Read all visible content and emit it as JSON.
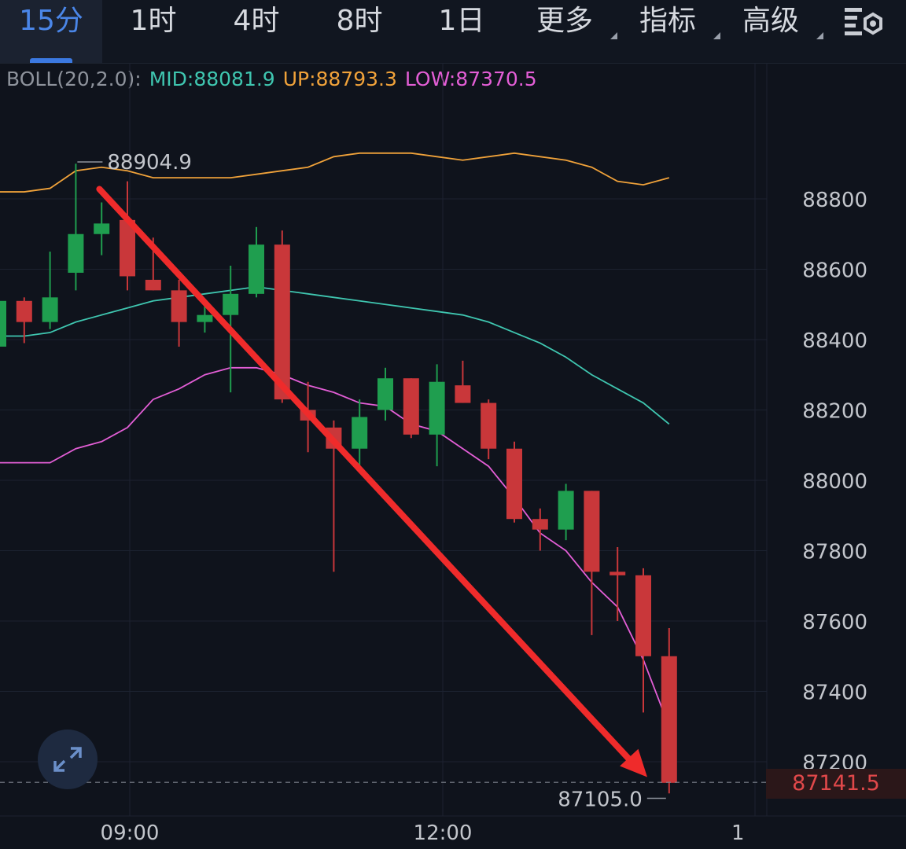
{
  "tabs": [
    {
      "label": "15分",
      "active": true,
      "dropdown": false
    },
    {
      "label": "1时",
      "active": false,
      "dropdown": false
    },
    {
      "label": "4时",
      "active": false,
      "dropdown": false
    },
    {
      "label": "8时",
      "active": false,
      "dropdown": false
    },
    {
      "label": "1日",
      "active": false,
      "dropdown": false
    },
    {
      "label": "更多",
      "active": false,
      "dropdown": true
    },
    {
      "label": "指标",
      "active": false,
      "dropdown": true
    },
    {
      "label": "高级",
      "active": false,
      "dropdown": true
    }
  ],
  "settings_icon": "chart-settings-gear-icon",
  "indicator": {
    "name": "BOLL(20,2.0):",
    "mid": "MID:88081.9",
    "up": "UP:88793.3",
    "low": "LOW:87370.5",
    "colors": {
      "name": "#8e939c",
      "mid": "#3fc6b0",
      "up": "#f0a23a",
      "low": "#e35ed6"
    }
  },
  "colors": {
    "up": "#1f9e4f",
    "down": "#c9373a",
    "grid": "#1c2230",
    "arrow": "#ef2b2b"
  },
  "chart_data": {
    "type": "candlestick",
    "y_ticks": [
      88800,
      88600,
      88400,
      88200,
      88000,
      87800,
      87600,
      87400,
      87200
    ],
    "x_ticks": [
      "09:00",
      "12:00",
      "1"
    ],
    "ylim": [
      87040,
      89180
    ],
    "candles": [
      {
        "o": 88380,
        "h": 88520,
        "l": 88370,
        "c": 88510
      },
      {
        "o": 88510,
        "h": 88520,
        "l": 88390,
        "c": 88450
      },
      {
        "o": 88450,
        "h": 88650,
        "l": 88430,
        "c": 88520
      },
      {
        "o": 88590,
        "h": 88900,
        "l": 88540,
        "c": 88700
      },
      {
        "o": 88700,
        "h": 88790,
        "l": 88640,
        "c": 88730
      },
      {
        "o": 88740,
        "h": 88850,
        "l": 88540,
        "c": 88580
      },
      {
        "o": 88570,
        "h": 88690,
        "l": 88540,
        "c": 88540
      },
      {
        "o": 88540,
        "h": 88570,
        "l": 88380,
        "c": 88450
      },
      {
        "o": 88450,
        "h": 88500,
        "l": 88420,
        "c": 88470
      },
      {
        "o": 88470,
        "h": 88610,
        "l": 88250,
        "c": 88530
      },
      {
        "o": 88530,
        "h": 88720,
        "l": 88520,
        "c": 88670
      },
      {
        "o": 88670,
        "h": 88710,
        "l": 88220,
        "c": 88230
      },
      {
        "o": 88200,
        "h": 88280,
        "l": 88080,
        "c": 88170
      },
      {
        "o": 88150,
        "h": 88170,
        "l": 87740,
        "c": 88090
      },
      {
        "o": 88090,
        "h": 88230,
        "l": 88040,
        "c": 88180
      },
      {
        "o": 88200,
        "h": 88320,
        "l": 88170,
        "c": 88290
      },
      {
        "o": 88290,
        "h": 88290,
        "l": 88120,
        "c": 88130
      },
      {
        "o": 88130,
        "h": 88330,
        "l": 88040,
        "c": 88280
      },
      {
        "o": 88270,
        "h": 88340,
        "l": 88220,
        "c": 88220
      },
      {
        "o": 88220,
        "h": 88230,
        "l": 88060,
        "c": 88090
      },
      {
        "o": 88090,
        "h": 88110,
        "l": 87880,
        "c": 87890
      },
      {
        "o": 87890,
        "h": 87920,
        "l": 87800,
        "c": 87860
      },
      {
        "o": 87860,
        "h": 87990,
        "l": 87830,
        "c": 87970
      },
      {
        "o": 87970,
        "h": 87970,
        "l": 87560,
        "c": 87740
      },
      {
        "o": 87740,
        "h": 87810,
        "l": 87600,
        "c": 87730
      },
      {
        "o": 87730,
        "h": 87750,
        "l": 87340,
        "c": 87500
      },
      {
        "o": 87500,
        "h": 87580,
        "l": 87110,
        "c": 87140
      }
    ],
    "boll": {
      "up": [
        88820,
        88820,
        88830,
        88880,
        88890,
        88880,
        88860,
        88860,
        88860,
        88860,
        88870,
        88880,
        88890,
        88920,
        88930,
        88930,
        88930,
        88920,
        88910,
        88920,
        88930,
        88920,
        88910,
        88890,
        88850,
        88840,
        88860
      ],
      "mid": [
        88410,
        88410,
        88420,
        88450,
        88470,
        88490,
        88510,
        88520,
        88530,
        88540,
        88550,
        88540,
        88530,
        88520,
        88510,
        88500,
        88490,
        88480,
        88470,
        88450,
        88420,
        88390,
        88350,
        88300,
        88260,
        88220,
        88160
      ],
      "low": [
        88050,
        88050,
        88050,
        88090,
        88110,
        88150,
        88230,
        88260,
        88300,
        88320,
        88320,
        88300,
        88270,
        88250,
        88220,
        88210,
        88160,
        88140,
        88090,
        88040,
        87950,
        87850,
        87800,
        87710,
        87640,
        87490,
        87300
      ]
    },
    "annotations": {
      "high": "88904.9",
      "low": "87105.0",
      "last_price": "87141.5"
    },
    "arrow": {
      "from": [
        3.0,
        88810
      ],
      "to": [
        25.0,
        87190
      ]
    }
  }
}
